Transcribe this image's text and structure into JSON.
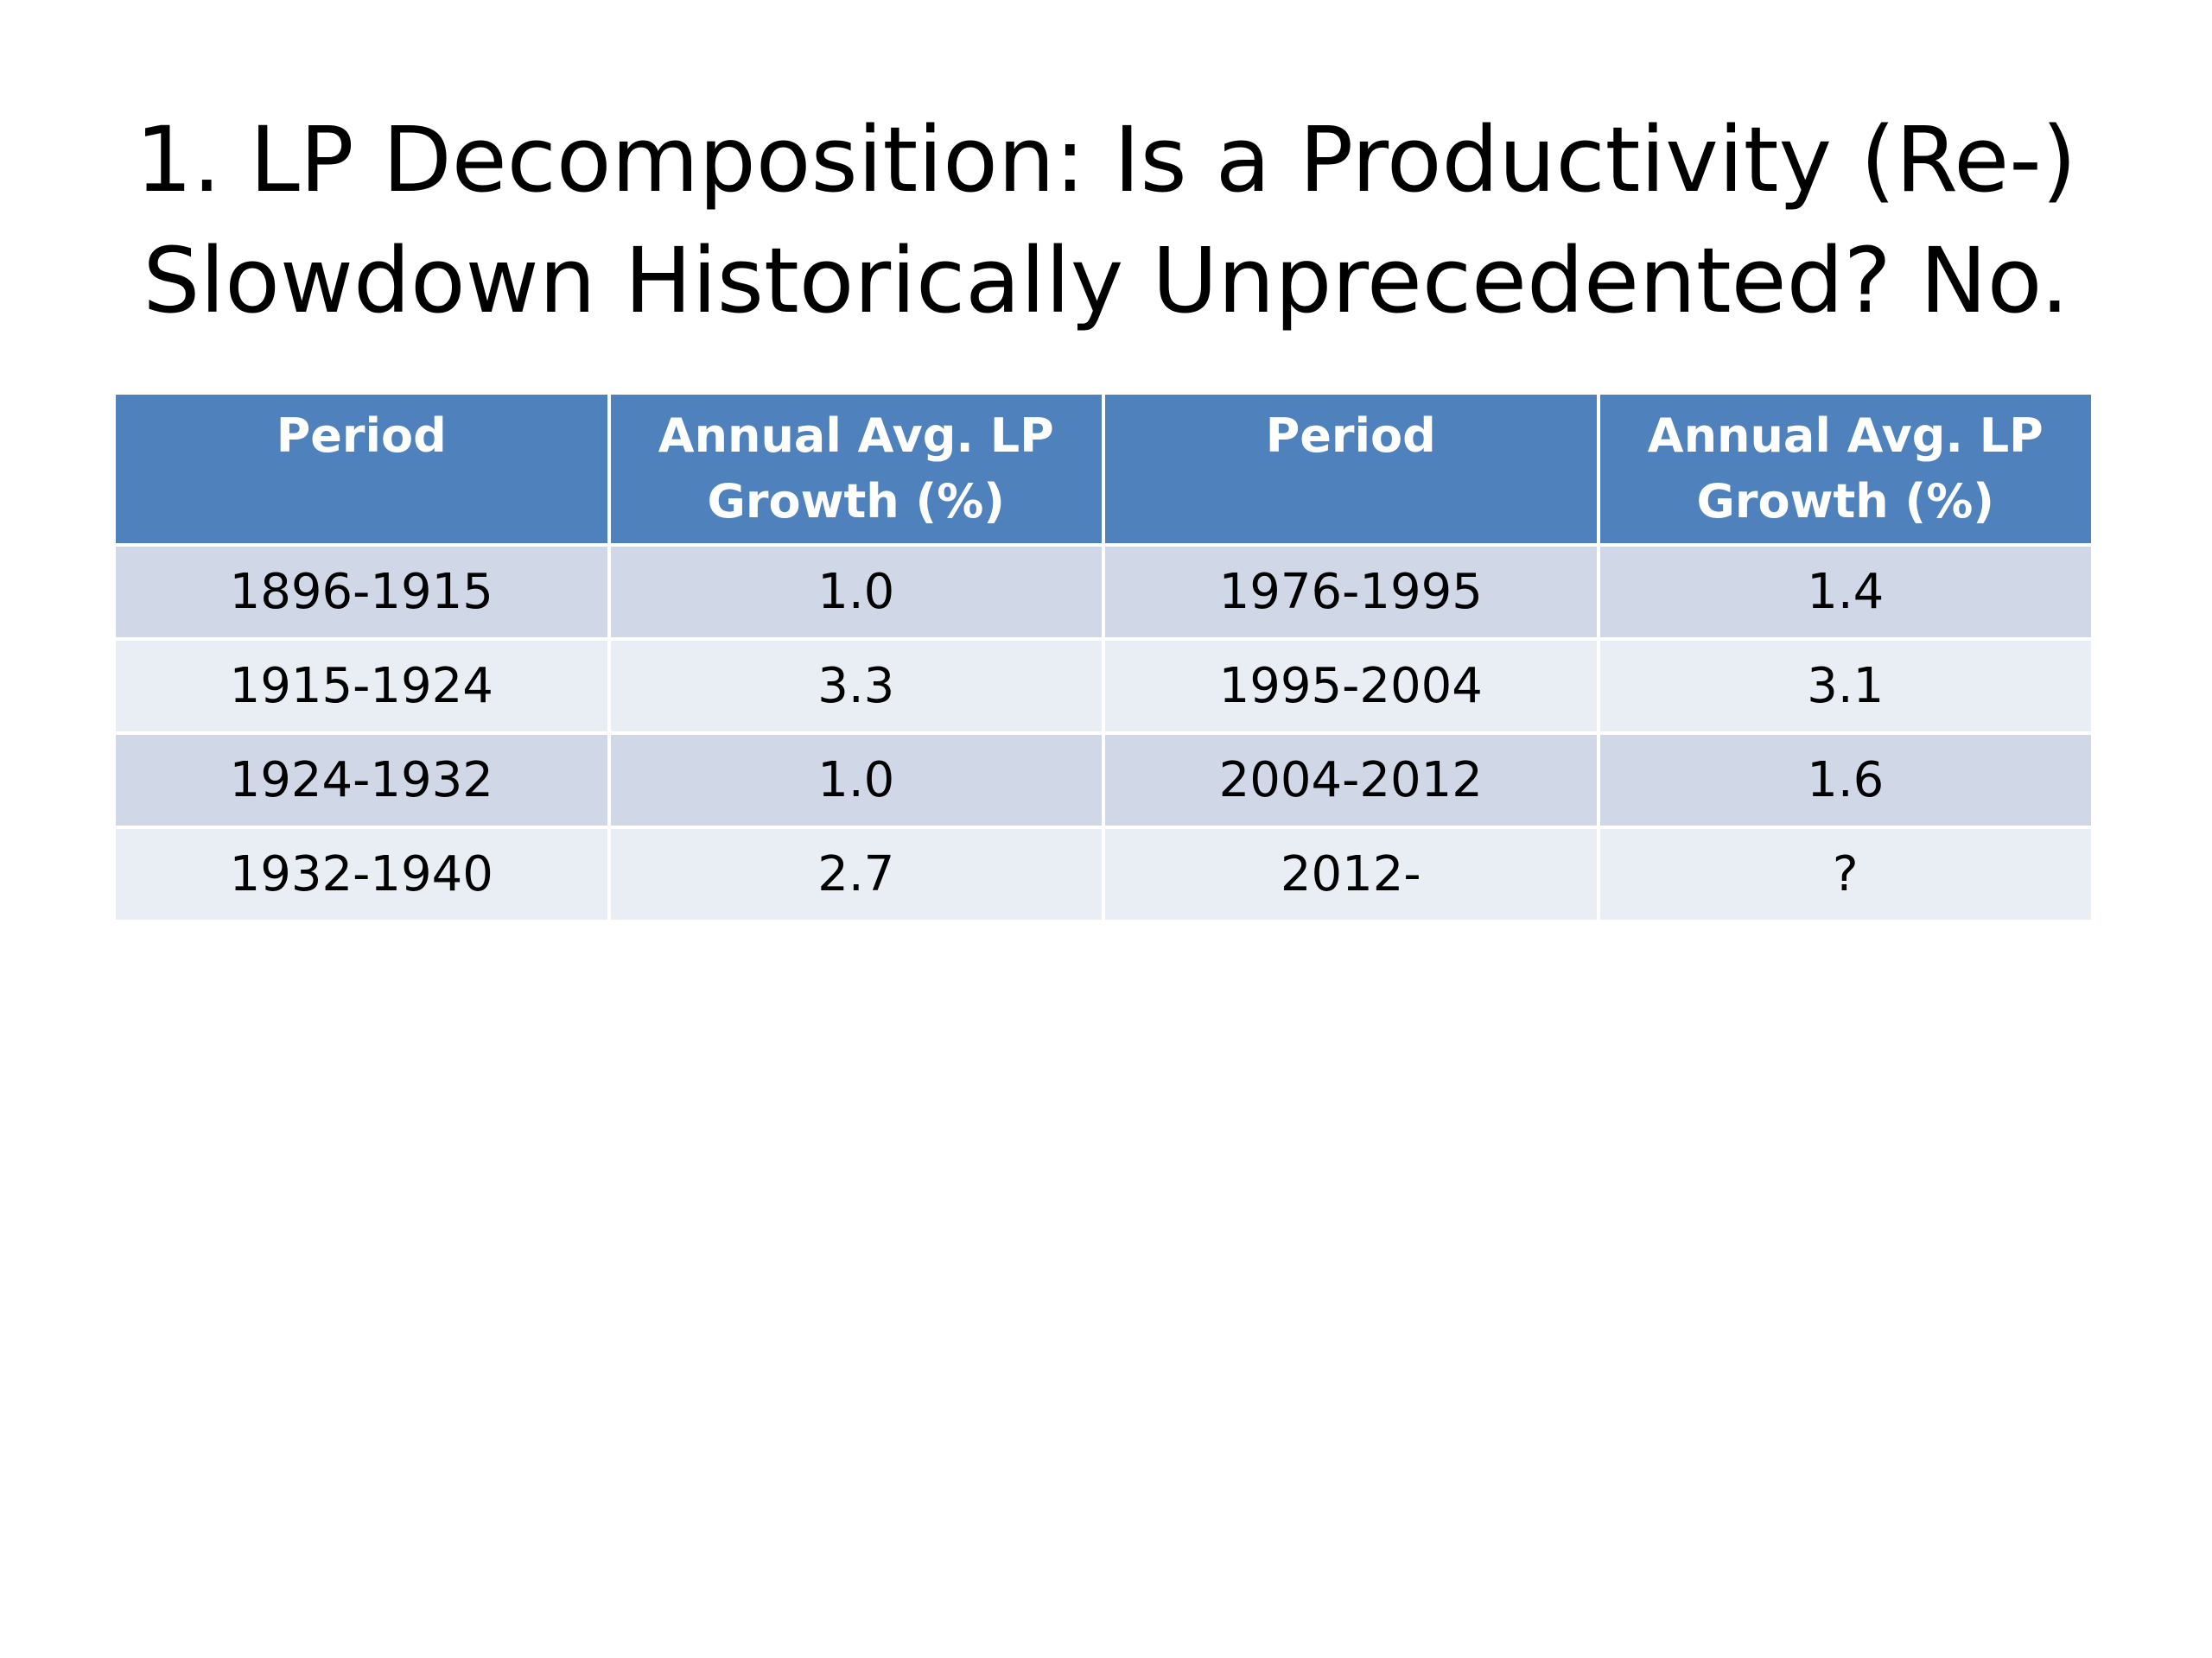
{
  "slide": {
    "title_line1": "1. LP Decomposition: Is a Productivity (Re-)",
    "title_line2": "Slowdown Historically Unprecedented?  No."
  },
  "table": {
    "headers": [
      {
        "line1": "Period",
        "line2": ""
      },
      {
        "line1": "Annual Avg. LP",
        "line2": "Growth (%)"
      },
      {
        "line1": "Period",
        "line2": ""
      },
      {
        "line1": "Annual Avg. LP",
        "line2": "Growth (%)"
      }
    ],
    "rows": [
      [
        "1896-1915",
        "1.0",
        "1976-1995",
        "1.4"
      ],
      [
        "1915-1924",
        "3.3",
        "1995-2004",
        "3.1"
      ],
      [
        "1924-1932",
        "1.0",
        "2004-2012",
        "1.6"
      ],
      [
        "1932-1940",
        "2.7",
        "2012-",
        "?"
      ]
    ]
  },
  "colors": {
    "header_bg": "#4f81bd",
    "row_odd_bg": "#d0d8e8",
    "row_even_bg": "#e9edf4",
    "header_text": "#ffffff"
  }
}
